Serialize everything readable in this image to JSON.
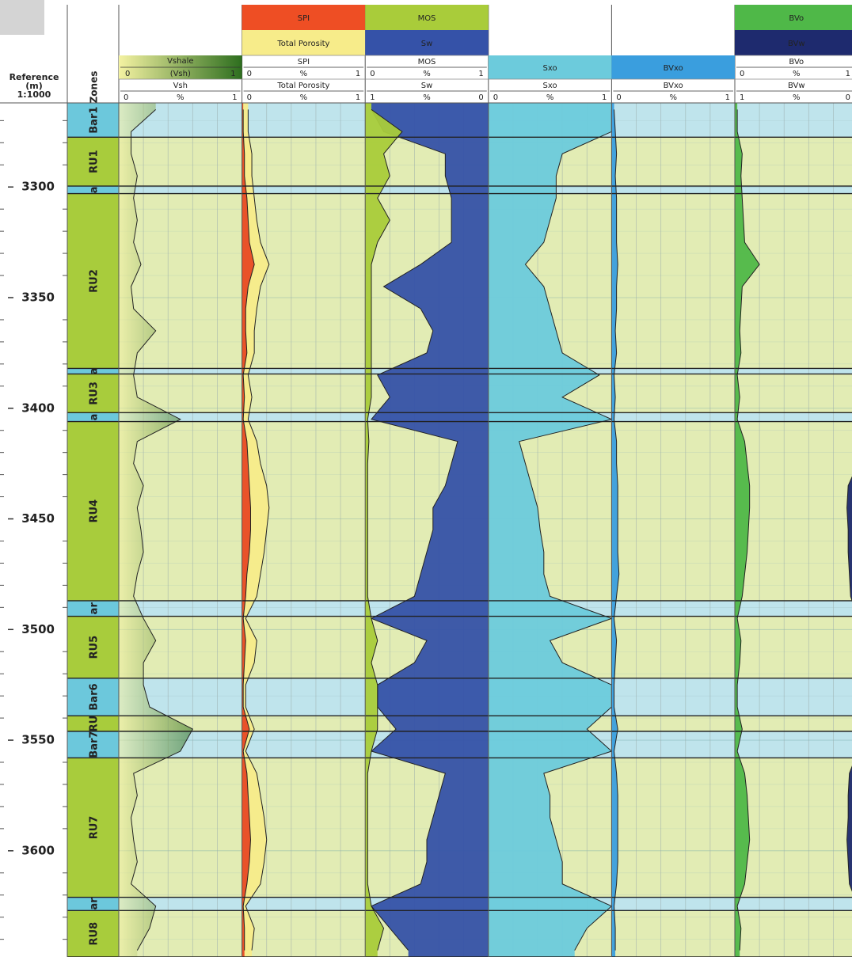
{
  "chart_data": {
    "type": "well-log",
    "depth_header": [
      "Reference",
      "(m)",
      "1:1000"
    ],
    "zones_title": "Zones",
    "ylim": [
      3262,
      3648
    ],
    "yticks": [
      3300,
      3350,
      3400,
      3450,
      3500,
      3550,
      3600
    ],
    "yminorticks": [
      3270,
      3280,
      3290,
      3310,
      3320,
      3330,
      3340,
      3360,
      3370,
      3380,
      3390,
      3410,
      3420,
      3430,
      3440,
      3460,
      3470,
      3480,
      3490,
      3510,
      3520,
      3530,
      3540,
      3560,
      3570,
      3580,
      3590,
      3610,
      3620,
      3630,
      3640
    ],
    "track_grid": [
      0.2,
      0.4,
      0.6,
      0.8
    ],
    "zones": [
      {
        "name": "Bar1",
        "top": 3262,
        "base": 3277.5,
        "color": "#6cc8dc",
        "band": "#bfe4ec"
      },
      {
        "name": "RU1",
        "top": 3277.5,
        "base": 3299.6,
        "color": "#a8cc3c",
        "band": "#e2ecb4"
      },
      {
        "name": "a",
        "top": 3299.6,
        "base": 3303,
        "color": "#6cc8dc",
        "band": "#bfe4ec"
      },
      {
        "name": "RU2",
        "top": 3303,
        "base": 3382,
        "color": "#a8cc3c",
        "band": "#e2ecb4"
      },
      {
        "name": "a",
        "top": 3382,
        "base": 3384.5,
        "color": "#6cc8dc",
        "band": "#bfe4ec"
      },
      {
        "name": "RU3",
        "top": 3384.5,
        "base": 3402,
        "color": "#a8cc3c",
        "band": "#e2ecb4"
      },
      {
        "name": "a",
        "top": 3402,
        "base": 3406,
        "color": "#6cc8dc",
        "band": "#bfe4ec"
      },
      {
        "name": "RU4",
        "top": 3406,
        "base": 3487,
        "color": "#a8cc3c",
        "band": "#e2ecb4"
      },
      {
        "name": "ar",
        "top": 3487,
        "base": 3494,
        "color": "#6cc8dc",
        "band": "#bfe4ec"
      },
      {
        "name": "RU5",
        "top": 3494,
        "base": 3522,
        "color": "#a8cc3c",
        "band": "#e2ecb4"
      },
      {
        "name": "Bar6",
        "top": 3522,
        "base": 3539,
        "color": "#6cc8dc",
        "band": "#bfe4ec"
      },
      {
        "name": "RU",
        "top": 3539,
        "base": 3546,
        "color": "#a8cc3c",
        "band": "#e2ecb4"
      },
      {
        "name": "Bar7",
        "top": 3546,
        "base": 3558,
        "color": "#6cc8dc",
        "band": "#bfe4ec"
      },
      {
        "name": "RU7",
        "top": 3558,
        "base": 3621,
        "color": "#a8cc3c",
        "band": "#e2ecb4"
      },
      {
        "name": "ar",
        "top": 3621,
        "base": 3627,
        "color": "#6cc8dc",
        "band": "#bfe4ec"
      },
      {
        "name": "RU8",
        "top": 3627,
        "base": 3648,
        "color": "#a8cc3c",
        "band": "#e2ecb4"
      }
    ],
    "depths": [
      3265,
      3275,
      3285,
      3295,
      3305,
      3315,
      3325,
      3335,
      3345,
      3355,
      3365,
      3375,
      3385,
      3395,
      3405,
      3415,
      3425,
      3435,
      3445,
      3455,
      3465,
      3475,
      3485,
      3495,
      3505,
      3515,
      3525,
      3535,
      3545,
      3555,
      3565,
      3575,
      3585,
      3595,
      3605,
      3615,
      3625,
      3635,
      3645
    ],
    "tracks": [
      {
        "legends": [
          {
            "name": "Vshale",
            "color": "#2d6e1e",
            "left": 0,
            "label": "(Vsh)",
            "right": 1
          }
        ],
        "curves": [
          {
            "name": "Vsh",
            "color": "#8fbf4a",
            "fill": "left",
            "xlim": [
              0,
              1
            ],
            "unit": "%",
            "values": [
              0.3,
              0.1,
              0.1,
              0.15,
              0.12,
              0.15,
              0.12,
              0.18,
              0.1,
              0.12,
              0.3,
              0.15,
              0.12,
              0.15,
              0.5,
              0.15,
              0.12,
              0.2,
              0.15,
              0.18,
              0.2,
              0.15,
              0.12,
              0.2,
              0.3,
              0.2,
              0.2,
              0.25,
              0.6,
              0.5,
              0.12,
              0.15,
              0.1,
              0.12,
              0.15,
              0.1,
              0.3,
              0.25,
              0.15
            ]
          }
        ]
      },
      {
        "legends": [
          {
            "name": "SPI",
            "color": "#ee4e24"
          },
          {
            "name": "Total Porosity",
            "color": "#f7ec8a"
          }
        ],
        "curves": [
          {
            "name": "SPI",
            "color": "#e84a24",
            "fill": "left",
            "xlim": [
              0,
              1
            ],
            "unit": "%",
            "values": [
              0.01,
              0.01,
              0.02,
              0.02,
              0.04,
              0.05,
              0.06,
              0.1,
              0.05,
              0.03,
              0.03,
              0.04,
              0.01,
              0.02,
              0.01,
              0.04,
              0.05,
              0.06,
              0.07,
              0.07,
              0.06,
              0.04,
              0.03,
              0.01,
              0.03,
              0.02,
              0.01,
              0.01,
              0.06,
              0.01,
              0.04,
              0.05,
              0.06,
              0.07,
              0.06,
              0.04,
              0.01,
              0.02,
              0.02
            ]
          },
          {
            "name": "Total Porosity",
            "color": "#f7ec8a",
            "fill": "left",
            "xlim": [
              0,
              1
            ],
            "unit": "%",
            "values": [
              0.05,
              0.05,
              0.08,
              0.08,
              0.1,
              0.12,
              0.15,
              0.22,
              0.15,
              0.12,
              0.1,
              0.1,
              0.05,
              0.08,
              0.05,
              0.12,
              0.15,
              0.2,
              0.22,
              0.2,
              0.18,
              0.15,
              0.12,
              0.03,
              0.12,
              0.1,
              0.03,
              0.03,
              0.1,
              0.03,
              0.12,
              0.15,
              0.18,
              0.2,
              0.18,
              0.15,
              0.03,
              0.1,
              0.08
            ]
          }
        ]
      },
      {
        "legends": [
          {
            "name": "MOS",
            "color": "#a9cc3a"
          },
          {
            "name": "Sw",
            "color": "#3552a8"
          }
        ],
        "curves": [
          {
            "name": "MOS",
            "color": "#a9cc3a",
            "fill": "left",
            "xlim": [
              0,
              1
            ],
            "unit": "%",
            "values": [
              0.05,
              0.3,
              0.15,
              0.2,
              0.1,
              0.2,
              0.1,
              0.05,
              0.05,
              0.05,
              0.05,
              0.05,
              0.05,
              0.05,
              0.02,
              0.03,
              0.02,
              0.02,
              0.02,
              0.02,
              0.02,
              0.02,
              0.02,
              0.05,
              0.1,
              0.05,
              0.1,
              0.1,
              0.1,
              0.05,
              0.02,
              0.02,
              0.02,
              0.02,
              0.02,
              0.02,
              0.05,
              0.15,
              0.1
            ]
          },
          {
            "name": "Sw",
            "color": "#3552a8",
            "fill": "right",
            "xlim": [
              1,
              0
            ],
            "unit": "%",
            "values": [
              0.95,
              0.85,
              0.35,
              0.35,
              0.3,
              0.3,
              0.3,
              0.55,
              0.85,
              0.55,
              0.45,
              0.5,
              0.9,
              0.8,
              0.95,
              0.25,
              0.3,
              0.35,
              0.45,
              0.45,
              0.5,
              0.55,
              0.6,
              0.95,
              0.5,
              0.6,
              0.9,
              0.9,
              0.75,
              0.95,
              0.35,
              0.4,
              0.45,
              0.5,
              0.5,
              0.55,
              0.95,
              0.8,
              0.65
            ]
          }
        ]
      },
      {
        "legends": [
          {
            "name": "Sxo",
            "color": "#6ccbdc"
          }
        ],
        "curves": [
          {
            "name": "Sxo",
            "color": "#6ccbdc",
            "fill": "left",
            "xlim": [
              0,
              1
            ],
            "unit": "%",
            "values": [
              1,
              1,
              0.6,
              0.55,
              0.55,
              0.5,
              0.45,
              0.3,
              0.45,
              0.5,
              0.55,
              0.6,
              0.9,
              0.6,
              1,
              0.25,
              0.3,
              0.35,
              0.4,
              0.42,
              0.45,
              0.45,
              0.5,
              1,
              0.5,
              0.6,
              1,
              1,
              0.8,
              1,
              0.45,
              0.5,
              0.5,
              0.55,
              0.6,
              0.6,
              1,
              0.8,
              0.7
            ]
          }
        ]
      },
      {
        "legends": [
          {
            "name": "BVxo",
            "color": "#3a9ede"
          }
        ],
        "curves": [
          {
            "name": "BVxo",
            "color": "#3a9ede",
            "fill": "left",
            "xlim": [
              0,
              1
            ],
            "unit": "%",
            "values": [
              0.02,
              0.03,
              0.04,
              0.03,
              0.04,
              0.04,
              0.04,
              0.05,
              0.04,
              0.04,
              0.03,
              0.04,
              0.02,
              0.03,
              0.02,
              0.04,
              0.04,
              0.05,
              0.05,
              0.05,
              0.05,
              0.06,
              0.04,
              0.02,
              0.04,
              0.03,
              0.02,
              0.02,
              0.05,
              0.02,
              0.04,
              0.05,
              0.05,
              0.05,
              0.05,
              0.04,
              0.02,
              0.03,
              0.03
            ]
          }
        ]
      },
      {
        "legends": [
          {
            "name": "BVo",
            "color": "#4fb848"
          },
          {
            "name": "BVw",
            "color": "#1e2a6e"
          }
        ],
        "curves": [
          {
            "name": "BVo",
            "color": "#4fb848",
            "fill": "left",
            "xlim": [
              0,
              1
            ],
            "unit": "%",
            "values": [
              0.02,
              0.02,
              0.06,
              0.05,
              0.06,
              0.07,
              0.08,
              0.2,
              0.06,
              0.05,
              0.04,
              0.05,
              0.02,
              0.04,
              0.02,
              0.08,
              0.1,
              0.12,
              0.12,
              0.11,
              0.1,
              0.08,
              0.06,
              0.02,
              0.05,
              0.04,
              0.02,
              0.02,
              0.06,
              0.02,
              0.08,
              0.1,
              0.11,
              0.12,
              0.1,
              0.08,
              0.02,
              0.05,
              0.04
            ]
          },
          {
            "name": "BVw",
            "color": "#1e2a6e",
            "fill": "right",
            "xlim": [
              1,
              0
            ],
            "unit": "%",
            "values": [
              0,
              0,
              0,
              0,
              0,
              0,
              0,
              0,
              0,
              0,
              0,
              0,
              0,
              0,
              0,
              0,
              0,
              0.08,
              0.09,
              0.08,
              0.08,
              0.07,
              0.06,
              0,
              0,
              0,
              0,
              0,
              0,
              0,
              0.07,
              0.08,
              0.08,
              0.09,
              0.08,
              0.07,
              0,
              0,
              0
            ]
          }
        ]
      }
    ]
  }
}
